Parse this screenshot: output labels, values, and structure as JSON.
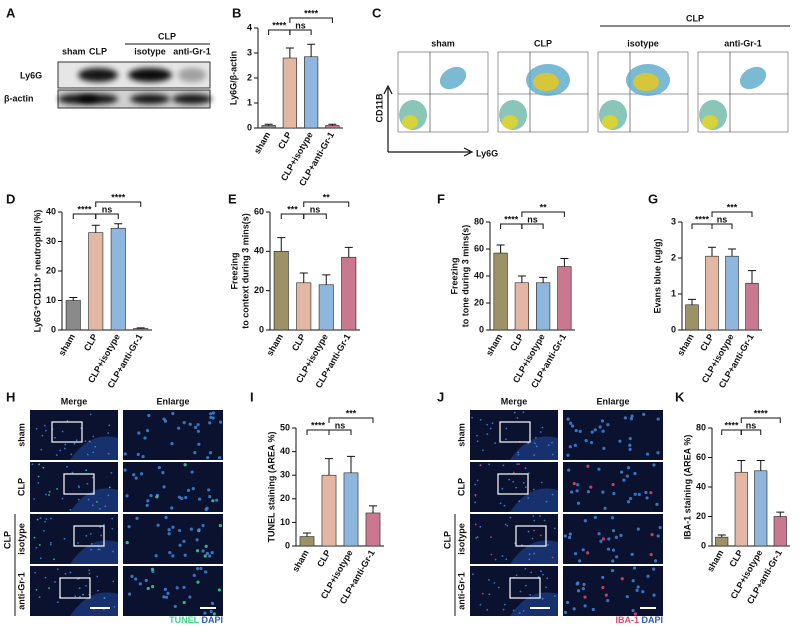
{
  "figure": {
    "panel_labels": [
      "A",
      "B",
      "C",
      "D",
      "E",
      "F",
      "G",
      "H",
      "I",
      "J",
      "K"
    ],
    "blot": {
      "lanes": [
        "sham",
        "CLP",
        "isotype",
        "anti-Gr-1"
      ],
      "group": "CLP",
      "bands": [
        "Ly6G",
        "β-actin"
      ]
    },
    "flow": {
      "plots": [
        "sham",
        "CLP",
        "isotype",
        "anti-Gr-1"
      ],
      "group": "CLP",
      "y_label": "CD11B",
      "x_label": "Ly6G"
    },
    "tunel": {
      "columns": [
        "Merge",
        "Enlarge"
      ],
      "rows": [
        "sham",
        "CLP",
        "isotype",
        "anti-Gr-1"
      ],
      "group": "CLP",
      "stain": "TUNEL",
      "counterstain": "DAPI"
    },
    "iba": {
      "columns": [
        "Merge",
        "Enlarge"
      ],
      "rows": [
        "sham",
        "CLP",
        "isotype",
        "anti-Gr-1"
      ],
      "group": "CLP",
      "stain": "IBA-1",
      "counterstain": "DAPI"
    }
  },
  "chart_data": [
    {
      "type": "bar",
      "ylabel": [
        "Ly6G/β-actin"
      ],
      "categories": [
        "sham",
        "CLP",
        "CLP+isotype",
        "CLP+anti-Gr-1"
      ],
      "values": [
        0.1,
        2.8,
        2.85,
        0.1
      ],
      "errors": [
        0.05,
        0.4,
        0.5,
        0.05
      ],
      "colors": [
        "#8a8a8a",
        "#e3b7a3",
        "#8fb6dc",
        "#c9788f"
      ],
      "ylim": [
        0,
        4
      ],
      "yticks": [
        0,
        1,
        2,
        3,
        4
      ],
      "comparisons": [
        "****",
        "ns",
        "****"
      ]
    },
    {
      "type": "bar",
      "ylabel": [
        "Ly6G⁺CD11b⁺ neutrophil (%)"
      ],
      "categories": [
        "sham",
        "CLP",
        "CLP+isotype",
        "CLP+anti-Gr-1"
      ],
      "values": [
        10,
        33,
        34.5,
        0.5
      ],
      "errors": [
        1,
        2.5,
        1.5,
        0.2
      ],
      "colors": [
        "#8a8a8a",
        "#e3b7a3",
        "#8fb6dc",
        "#c9788f"
      ],
      "ylim": [
        0,
        40
      ],
      "yticks": [
        0,
        10,
        20,
        30,
        40
      ],
      "comparisons": [
        "****",
        "ns",
        "****"
      ]
    },
    {
      "type": "bar",
      "ylabel": [
        "Freezing",
        "to context during 3 mins(s)"
      ],
      "categories": [
        "sham",
        "CLP",
        "CLP+isotype",
        "CLP+anti-Gr-1"
      ],
      "values": [
        40,
        24,
        23,
        37
      ],
      "errors": [
        7,
        5,
        5,
        5
      ],
      "colors": [
        "#9c9265",
        "#e3b7a3",
        "#8fb6dc",
        "#c9788f"
      ],
      "ylim": [
        0,
        60
      ],
      "yticks": [
        0,
        20,
        40,
        60
      ],
      "comparisons": [
        "***",
        "ns",
        "**"
      ]
    },
    {
      "type": "bar",
      "ylabel": [
        "Freezing",
        "to tone during 3 mins(s)"
      ],
      "categories": [
        "sham",
        "CLP",
        "CLP+isotype",
        "CLP+anti-Gr-1"
      ],
      "values": [
        57,
        35,
        35,
        47
      ],
      "errors": [
        6,
        5,
        4,
        6
      ],
      "colors": [
        "#9c9265",
        "#e3b7a3",
        "#8fb6dc",
        "#c9788f"
      ],
      "ylim": [
        0,
        80
      ],
      "yticks": [
        0,
        20,
        40,
        60,
        80
      ],
      "comparisons": [
        "****",
        "ns",
        "**"
      ]
    },
    {
      "type": "bar",
      "ylabel": [
        "Evans blue (ug/g)"
      ],
      "categories": [
        "sham",
        "CLP",
        "CLP+isotype",
        "CLP+anti-Gr-1"
      ],
      "values": [
        0.7,
        2.05,
        2.05,
        1.3
      ],
      "errors": [
        0.15,
        0.25,
        0.2,
        0.35
      ],
      "colors": [
        "#9c9265",
        "#e3b7a3",
        "#8fb6dc",
        "#c9788f"
      ],
      "ylim": [
        0,
        3
      ],
      "yticks": [
        0,
        1,
        2,
        3
      ],
      "comparisons": [
        "****",
        "ns",
        "***"
      ]
    },
    {
      "type": "bar",
      "ylabel": [
        "TUNEL staining (AREA %)"
      ],
      "categories": [
        "sham",
        "CLP",
        "CLP+isotype",
        "CLP+anti-Gr-1"
      ],
      "values": [
        4,
        30,
        31,
        14
      ],
      "errors": [
        1.5,
        7,
        7,
        3
      ],
      "colors": [
        "#9c9265",
        "#e3b7a3",
        "#8fb6dc",
        "#c9788f"
      ],
      "ylim": [
        0,
        50
      ],
      "yticks": [
        0,
        10,
        20,
        30,
        40,
        50
      ],
      "comparisons": [
        "****",
        "ns",
        "***"
      ]
    },
    {
      "type": "bar",
      "ylabel": [
        "IBA-1 staining (AREA %)"
      ],
      "categories": [
        "sham",
        "CLP",
        "CLP+isotype",
        "CLP+anti-Gr-1"
      ],
      "values": [
        6,
        50,
        51,
        20
      ],
      "errors": [
        1.5,
        8,
        7,
        3
      ],
      "colors": [
        "#9c9265",
        "#e3b7a3",
        "#8fb6dc",
        "#c9788f"
      ],
      "ylim": [
        0,
        80
      ],
      "yticks": [
        0,
        20,
        40,
        60,
        80
      ],
      "comparisons": [
        "****",
        "ns",
        "****"
      ]
    }
  ]
}
